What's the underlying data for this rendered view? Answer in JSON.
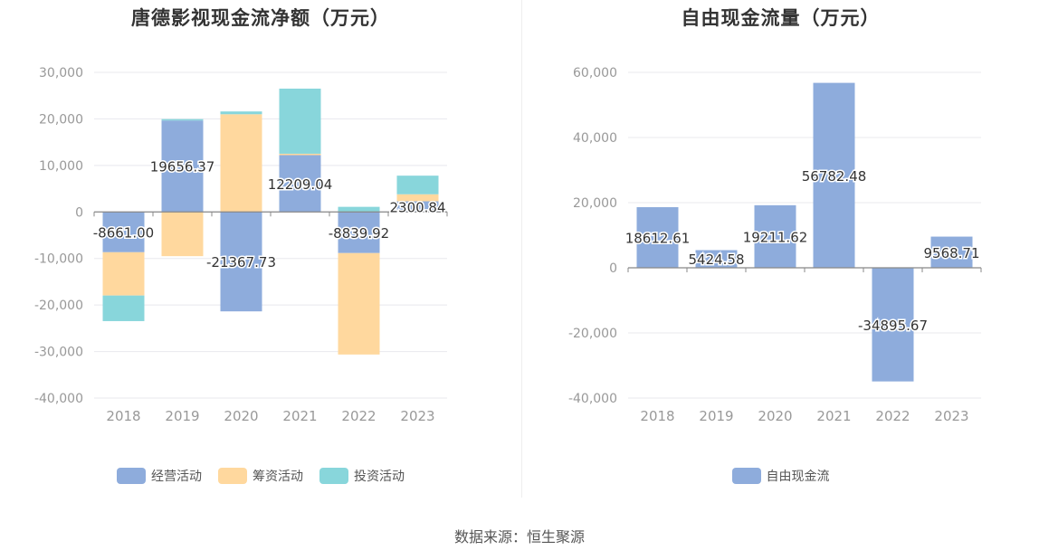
{
  "chart_data": [
    {
      "type": "bar",
      "stacked": true,
      "title": "唐德影视现金流净额（万元）",
      "categories": [
        "2018",
        "2019",
        "2020",
        "2021",
        "2022",
        "2023"
      ],
      "ylim": [
        -40000,
        30000
      ],
      "yticks": [
        "30,000",
        "20,000",
        "10,000",
        "0",
        "-10,000",
        "-20,000",
        "-30,000",
        "-40,000"
      ],
      "ytick_values": [
        30000,
        20000,
        10000,
        0,
        -10000,
        -20000,
        -30000,
        -40000
      ],
      "grid": true,
      "legend_position": "bottom",
      "series": [
        {
          "name": "经营活动",
          "color": "#8eacdc",
          "values": [
            -8661.0,
            19656.37,
            -21367.73,
            12209.04,
            -8839.92,
            2300.84
          ]
        },
        {
          "name": "筹资活动",
          "color": "#ffd89e",
          "values": [
            -9300,
            -9500,
            21000,
            300,
            -21800,
            1500
          ]
        },
        {
          "name": "投资活动",
          "color": "#88d6db",
          "values": [
            -5500,
            300,
            600,
            14000,
            1100,
            4000
          ]
        }
      ],
      "data_labels": [
        "-8661.00",
        "19656.37",
        "-21367.73",
        "12209.04",
        "-8839.92",
        "2300.84"
      ]
    },
    {
      "type": "bar",
      "title": "自由现金流量（万元）",
      "categories": [
        "2018",
        "2019",
        "2020",
        "2021",
        "2022",
        "2023"
      ],
      "ylim": [
        -40000,
        60000
      ],
      "yticks": [
        "60,000",
        "40,000",
        "20,000",
        "0",
        "-20,000",
        "-40,000"
      ],
      "ytick_values": [
        60000,
        40000,
        20000,
        0,
        -20000,
        -40000
      ],
      "grid": true,
      "legend_position": "bottom",
      "series": [
        {
          "name": "自由现金流",
          "color": "#8eacdc",
          "values": [
            18612.61,
            5424.58,
            19211.62,
            56782.48,
            -34895.67,
            9568.71
          ]
        }
      ],
      "data_labels": [
        "18612.61",
        "5424.58",
        "19211.62",
        "56782.48",
        "-34895.67",
        "9568.71"
      ]
    }
  ],
  "source": "数据来源：恒生聚源"
}
